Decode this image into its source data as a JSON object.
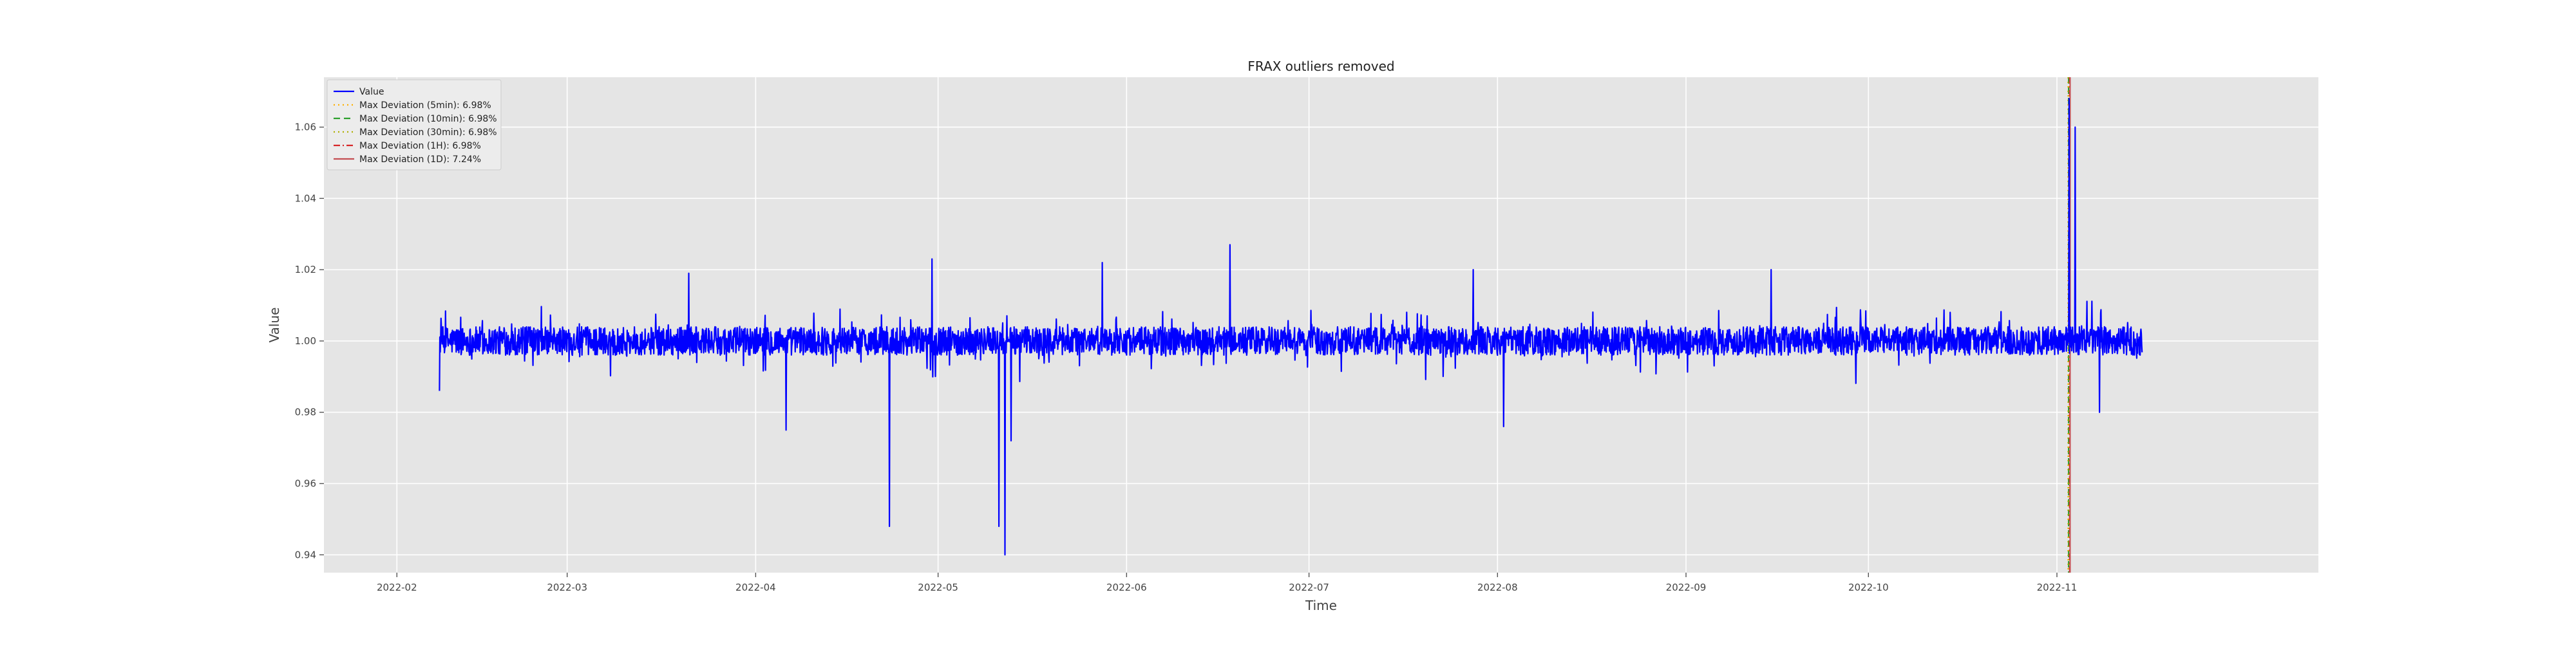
{
  "chart_data": {
    "type": "line",
    "title": "FRAX outliers removed",
    "xlabel": "Time",
    "ylabel": "Value",
    "x_range": [
      "2022-01-20",
      "2022-12-14"
    ],
    "x_data_range": [
      "2022-02-08",
      "2022-11-15"
    ],
    "ylim": [
      0.935,
      1.074
    ],
    "x_ticks": [
      "2022-02-01",
      "2022-03-01",
      "2022-04-01",
      "2022-05-01",
      "2022-06-01",
      "2022-07-01",
      "2022-08-01",
      "2022-09-01",
      "2022-10-01",
      "2022-11-01"
    ],
    "x_tick_labels": [
      "2022-02",
      "2022-03",
      "2022-04",
      "2022-05",
      "2022-06",
      "2022-07",
      "2022-08",
      "2022-09",
      "2022-10",
      "2022-11"
    ],
    "y_ticks": [
      0.94,
      0.96,
      0.98,
      1.0,
      1.02,
      1.04,
      1.06
    ],
    "y_tick_labels": [
      "0.94",
      "0.96",
      "0.98",
      "1.00",
      "1.02",
      "1.04",
      "1.06"
    ],
    "grid": true,
    "legend_position": "upper-left",
    "background_color": "#e5e5e5",
    "series_color": "#0000ff",
    "baseline": 1.0,
    "noise_amplitude": 0.004,
    "features": [
      {
        "date": "2022-02-08",
        "value": 0.986
      },
      {
        "date": "2022-03-21",
        "value": 1.019
      },
      {
        "date": "2022-04-06",
        "value": 0.975
      },
      {
        "date": "2022-04-23",
        "value": 0.948
      },
      {
        "date": "2022-04-30",
        "value": 1.023
      },
      {
        "date": "2022-05-11",
        "value": 0.948
      },
      {
        "date": "2022-05-12",
        "value": 0.94
      },
      {
        "date": "2022-05-13",
        "value": 0.972
      },
      {
        "date": "2022-05-28",
        "value": 1.022
      },
      {
        "date": "2022-06-18",
        "value": 1.027
      },
      {
        "date": "2022-07-28",
        "value": 1.02
      },
      {
        "date": "2022-08-02",
        "value": 0.976
      },
      {
        "date": "2022-09-15",
        "value": 1.02
      },
      {
        "date": "2022-11-03",
        "value": 1.068
      },
      {
        "date": "2022-11-04",
        "value": 1.06
      },
      {
        "date": "2022-11-08",
        "value": 0.98
      }
    ],
    "series": [
      {
        "name": "Value",
        "style": "solid",
        "color": "#0000ff"
      },
      {
        "name": "Max Deviation (5min): 6.98%",
        "style": "dotted",
        "color": "#ffb000",
        "x": "2022-11-03"
      },
      {
        "name": "Max Deviation (10min): 6.98%",
        "style": "dashed",
        "color": "#2ca02c",
        "x": "2022-11-03"
      },
      {
        "name": "Max Deviation (30min): 6.98%",
        "style": "dotted",
        "color": "#b0b000",
        "x": "2022-11-03"
      },
      {
        "name": "Max Deviation (1H): 6.98%",
        "style": "dashdot",
        "color": "#d62728",
        "x": "2022-11-03"
      },
      {
        "name": "Max Deviation (1D): 7.24%",
        "style": "solid",
        "color": "#c44e52",
        "x": "2022-11-03"
      }
    ]
  }
}
